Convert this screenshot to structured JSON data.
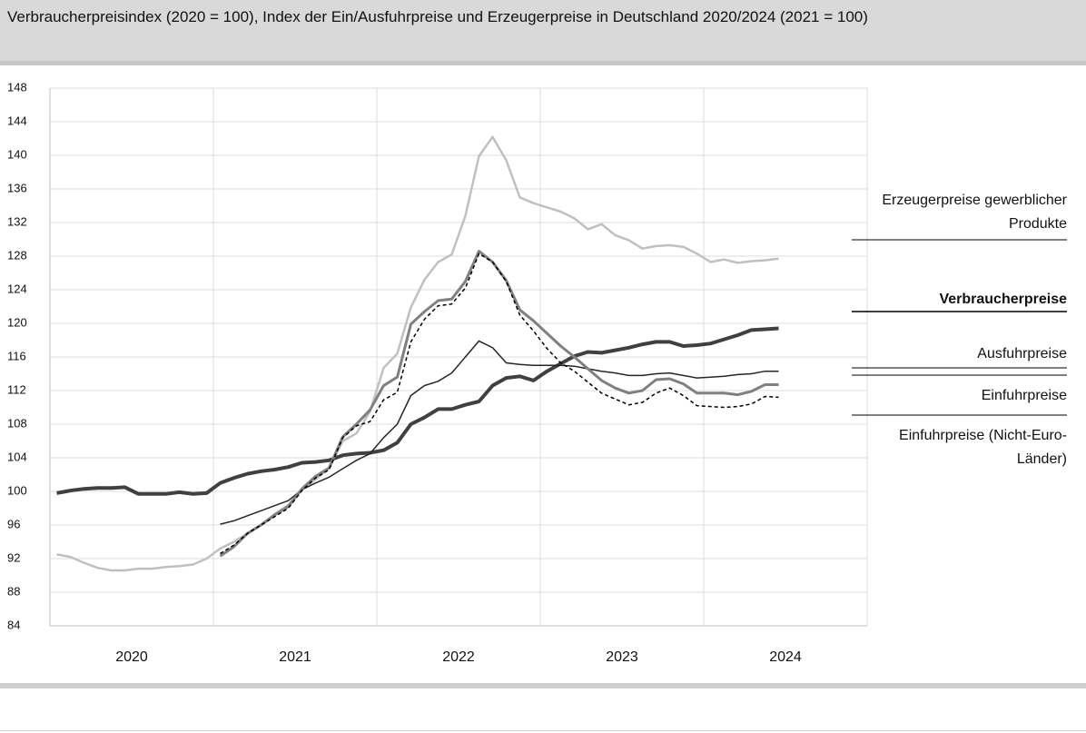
{
  "chart_data": {
    "type": "line",
    "title": "Verbraucherpreisindex (2020 = 100), Index der Ein/Ausfuhrpreise und Erzeugerpreise in Deutschland 2020/2024 (2021 = 100)",
    "x": [
      "2020-01",
      "2020-02",
      "2020-03",
      "2020-04",
      "2020-05",
      "2020-06",
      "2020-07",
      "2020-08",
      "2020-09",
      "2020-10",
      "2020-11",
      "2020-12",
      "2021-01",
      "2021-02",
      "2021-03",
      "2021-04",
      "2021-05",
      "2021-06",
      "2021-07",
      "2021-08",
      "2021-09",
      "2021-10",
      "2021-11",
      "2021-12",
      "2022-01",
      "2022-02",
      "2022-03",
      "2022-04",
      "2022-05",
      "2022-06",
      "2022-07",
      "2022-08",
      "2022-09",
      "2022-10",
      "2022-11",
      "2022-12",
      "2023-01",
      "2023-02",
      "2023-03",
      "2023-04",
      "2023-05",
      "2023-06",
      "2023-07",
      "2023-08",
      "2023-09",
      "2023-10",
      "2023-11",
      "2023-12",
      "2024-01",
      "2024-02",
      "2024-03",
      "2024-04",
      "2024-05",
      "2024-06"
    ],
    "xlim": [
      2020,
      2025
    ],
    "xgrid": [
      2020,
      2021,
      2022,
      2023,
      2024,
      2025
    ],
    "xticks": [
      {
        "value": 2020.5,
        "label": "2020"
      },
      {
        "value": 2021.5,
        "label": "2021"
      },
      {
        "value": 2022.5,
        "label": "2022"
      },
      {
        "value": 2023.5,
        "label": "2023"
      },
      {
        "value": 2024.5,
        "label": "2024"
      }
    ],
    "ylim": [
      84,
      148
    ],
    "yticks": [
      84,
      88,
      92,
      96,
      100,
      104,
      108,
      112,
      116,
      120,
      124,
      128,
      132,
      136,
      140,
      144,
      148
    ],
    "grid": true,
    "series": [
      {
        "name": "Erzeugerpreise gewerblicher Produkte",
        "color": "#c0c0c0",
        "width": 2.5,
        "style": "solid",
        "values": [
          92.5,
          92.2,
          91.5,
          90.9,
          90.6,
          90.6,
          90.8,
          90.8,
          91.0,
          91.1,
          91.3,
          92.0,
          93.2,
          94.0,
          95.0,
          96.0,
          97.3,
          98.4,
          100.2,
          101.4,
          102.8,
          106.0,
          106.9,
          109.5,
          114.7,
          116.4,
          121.9,
          125.2,
          127.3,
          128.2,
          132.8,
          139.9,
          142.2,
          139.4,
          135.0,
          134.3,
          133.8,
          133.3,
          132.5,
          131.2,
          131.8,
          130.5,
          129.9,
          128.9,
          129.2,
          129.3,
          129.1,
          128.3,
          127.3,
          127.6,
          127.2,
          127.4,
          127.5,
          127.7
        ]
      },
      {
        "name": "Verbraucherpreise",
        "color": "#404040",
        "width": 4,
        "style": "solid",
        "bold": true,
        "values": [
          99.8,
          100.1,
          100.3,
          100.4,
          100.4,
          100.5,
          99.7,
          99.7,
          99.7,
          99.9,
          99.7,
          99.8,
          101.0,
          101.6,
          102.1,
          102.4,
          102.6,
          102.9,
          103.4,
          103.5,
          103.7,
          104.3,
          104.5,
          104.6,
          104.9,
          105.8,
          108.0,
          108.8,
          109.8,
          109.8,
          110.3,
          110.7,
          112.6,
          113.5,
          113.7,
          113.2,
          114.3,
          115.2,
          116.1,
          116.6,
          116.5,
          116.8,
          117.1,
          117.5,
          117.8,
          117.8,
          117.3,
          117.4,
          117.6,
          118.1,
          118.6,
          119.2,
          119.3,
          119.4
        ]
      },
      {
        "name": "Ausfuhrpreise",
        "color": "#262626",
        "width": 1.5,
        "style": "solid",
        "values": [
          null,
          null,
          null,
          null,
          null,
          null,
          null,
          null,
          null,
          null,
          null,
          null,
          96.1,
          96.5,
          97.1,
          97.7,
          98.3,
          98.9,
          100.2,
          101.0,
          101.7,
          102.7,
          103.7,
          104.5,
          106.4,
          108.0,
          111.4,
          112.6,
          113.1,
          114.1,
          116.0,
          117.9,
          117.1,
          115.3,
          115.1,
          115.0,
          115.0,
          115.0,
          114.9,
          114.6,
          114.3,
          114.1,
          113.8,
          113.8,
          114.0,
          114.1,
          113.8,
          113.5,
          113.6,
          113.7,
          113.9,
          114.0,
          114.3,
          114.3
        ]
      },
      {
        "name": "Einfuhrpreise",
        "color": "#808080",
        "width": 3,
        "style": "solid",
        "values": [
          null,
          null,
          null,
          null,
          null,
          null,
          null,
          null,
          null,
          null,
          null,
          null,
          92.3,
          93.4,
          95.0,
          96.0,
          97.2,
          98.2,
          100.3,
          101.8,
          102.8,
          106.5,
          108.0,
          109.7,
          112.6,
          113.6,
          119.9,
          121.4,
          122.7,
          122.9,
          125.0,
          128.6,
          127.3,
          125.1,
          121.6,
          120.3,
          118.8,
          117.3,
          116.0,
          114.6,
          113.2,
          112.3,
          111.7,
          112.0,
          113.3,
          113.4,
          112.8,
          111.7,
          111.7,
          111.7,
          111.5,
          111.9,
          112.7,
          112.7
        ]
      },
      {
        "name": "Einfuhrpreise (Nicht-Euro-Länder)",
        "color": "#000000",
        "width": 1.5,
        "style": "dashed",
        "values": [
          null,
          null,
          null,
          null,
          null,
          null,
          null,
          null,
          null,
          null,
          null,
          null,
          92.6,
          93.6,
          95.0,
          96.0,
          97.0,
          98.0,
          100.1,
          101.6,
          102.6,
          106.4,
          107.8,
          108.3,
          110.9,
          111.8,
          117.8,
          120.5,
          122.1,
          122.3,
          124.2,
          128.3,
          127.3,
          125.0,
          121.0,
          119.1,
          117.0,
          115.3,
          114.3,
          113.0,
          111.7,
          111.0,
          110.3,
          110.6,
          111.7,
          112.3,
          111.4,
          110.2,
          110.1,
          110.0,
          110.1,
          110.4,
          111.3,
          111.2
        ]
      }
    ]
  }
}
